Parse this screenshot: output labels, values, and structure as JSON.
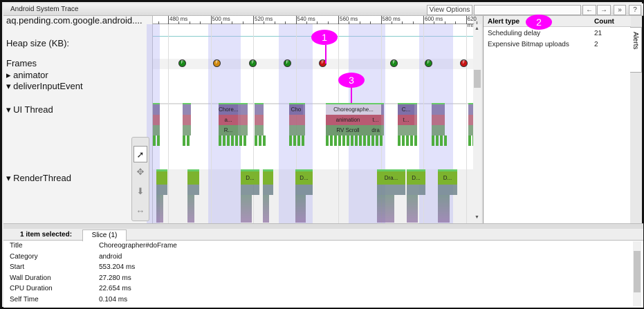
{
  "window": {
    "title": "Android System Trace"
  },
  "toolbar": {
    "view_options": "View Options ▾",
    "search_value": "",
    "prev": "←",
    "next": "→",
    "forward": "»",
    "help": "?"
  },
  "tracks": {
    "process_label": "aq.pending.com.google.android....",
    "heap_label": "Heap size (KB):",
    "frames_label": "Frames",
    "animator_label": "animator",
    "deliver_label": "deliverInputEvent",
    "ui_label": "UI Thread",
    "render_label": "RenderThread",
    "expand_arrow": "▸",
    "collapse_arrow": "▾"
  },
  "ruler": {
    "ticks_ms": [
      480,
      500,
      520,
      540,
      560,
      580,
      600,
      620
    ],
    "unit": "ms"
  },
  "frames": [
    {
      "label": "F",
      "status": "good",
      "color": "#1a8a1a"
    },
    {
      "label": "F",
      "status": "warning",
      "color": "#d08a10"
    },
    {
      "label": "F",
      "status": "good",
      "color": "#1a8a1a"
    },
    {
      "label": "F",
      "status": "good",
      "color": "#1a8a1a"
    },
    {
      "label": "F",
      "status": "bad",
      "color": "#c81414"
    },
    {
      "label": "F",
      "status": "good",
      "color": "#1a8a1a"
    },
    {
      "label": "F",
      "status": "good",
      "color": "#1a8a1a"
    },
    {
      "label": "F",
      "status": "bad",
      "color": "#c81414"
    }
  ],
  "ui_slices": [
    {
      "label": "Chore...",
      "row": 0
    },
    {
      "label": "a...",
      "row": 1
    },
    {
      "label": "R...",
      "row": 2
    },
    {
      "label": "Cho",
      "row": 0
    },
    {
      "label": "Choreographe...",
      "row": 0,
      "selected": true
    },
    {
      "label": "animation",
      "row": 1
    },
    {
      "label": "RV Scroll",
      "row": 2
    },
    {
      "label": "t...",
      "row": 1
    },
    {
      "label": "dra",
      "row": 2
    },
    {
      "label": "C...",
      "row": 0
    },
    {
      "label": "t...",
      "row": 1
    }
  ],
  "render_slices": [
    {
      "label": "D..."
    },
    {
      "label": "D..."
    },
    {
      "label": "Dra..."
    },
    {
      "label": "D..."
    },
    {
      "label": "D..."
    }
  ],
  "alerts": {
    "header_type": "Alert type",
    "header_count": "Count",
    "rows": [
      {
        "type": "Scheduling delay",
        "count": "21"
      },
      {
        "type": "Expensive Bitmap uploads",
        "count": "2"
      }
    ],
    "tab_label": "Alerts"
  },
  "markers": [
    "1",
    "2",
    "3"
  ],
  "details": {
    "selection_label": "1 item selected:",
    "tab_label": "Slice (1)",
    "rows": [
      {
        "key": "Title",
        "value": "Choreographer#doFrame"
      },
      {
        "key": "Category",
        "value": "android"
      },
      {
        "key": "Start",
        "value": "553.204 ms"
      },
      {
        "key": "Wall Duration",
        "value": "27.280 ms"
      },
      {
        "key": "CPU Duration",
        "value": "22.654 ms"
      },
      {
        "key": "Self Time",
        "value": "0.104 ms"
      }
    ]
  },
  "colors": {
    "purple": "#6f5f9a",
    "red": "#a84a62",
    "green": "#5e8a5e",
    "lime": "#7cb32e",
    "band": "#d8d8f8",
    "marker": "#ff00ff"
  }
}
